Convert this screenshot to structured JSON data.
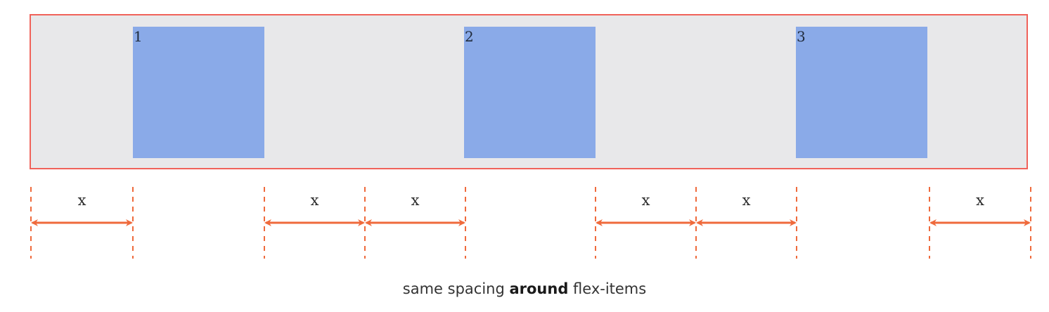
{
  "diagram": {
    "items": [
      {
        "label": "1"
      },
      {
        "label": "2"
      },
      {
        "label": "3"
      }
    ],
    "spacing_label": "x",
    "caption": {
      "before": "same spacing ",
      "emphasis": "around",
      "after": " flex-items"
    },
    "colors": {
      "container_border": "#f0625a",
      "container_fill": "#e8e8ea",
      "item_fill": "#8aaae8",
      "arrow": "#ef6a3c"
    }
  }
}
